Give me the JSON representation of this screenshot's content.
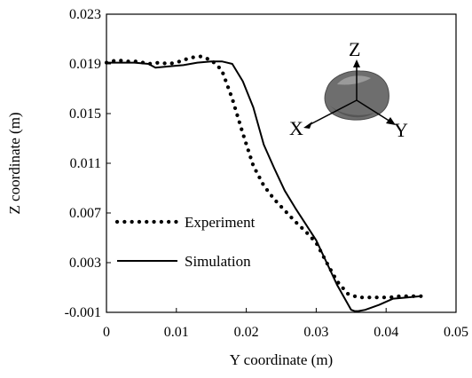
{
  "chart_data": {
    "type": "line",
    "title": "",
    "xlabel": "Y coordinate (m)",
    "ylabel": "Z coordinate (m)",
    "xlim": [
      0,
      0.05
    ],
    "ylim": [
      -0.001,
      0.023
    ],
    "x_ticks": [
      0,
      0.01,
      0.02,
      0.03,
      0.04,
      0.05
    ],
    "x_tick_labels": [
      "0",
      "0.01",
      "0.02",
      "0.03",
      "0.04",
      "0.05"
    ],
    "y_ticks": [
      -0.001,
      0.003,
      0.007,
      0.011,
      0.015,
      0.019,
      0.023
    ],
    "y_tick_labels": [
      "-0.001",
      "0.003",
      "0.007",
      "0.011",
      "0.015",
      "0.019",
      "0.023"
    ],
    "grid": false,
    "legend_position": "lower-left",
    "series": [
      {
        "name": "Experiment",
        "style": "dotted",
        "color": "#000000",
        "x": [
          0.0,
          0.0015,
          0.003,
          0.0045,
          0.006,
          0.0075,
          0.009,
          0.0105,
          0.012,
          0.0135,
          0.015,
          0.0165,
          0.018,
          0.0195,
          0.021,
          0.0225,
          0.024,
          0.0255,
          0.027,
          0.0285,
          0.03,
          0.0315,
          0.033,
          0.0345,
          0.036,
          0.0375,
          0.039,
          0.0405,
          0.042,
          0.0435,
          0.045
        ],
        "y": [
          0.0191,
          0.0193,
          0.0192,
          0.0192,
          0.019,
          0.0191,
          0.019,
          0.0192,
          0.0195,
          0.0196,
          0.0193,
          0.0185,
          0.0162,
          0.0134,
          0.0108,
          0.0092,
          0.0081,
          0.0072,
          0.0063,
          0.0055,
          0.0046,
          0.003,
          0.0015,
          0.0005,
          0.0002,
          0.0002,
          0.0002,
          0.0002,
          0.0003,
          0.0003,
          0.0003
        ]
      },
      {
        "name": "Simulation",
        "style": "solid",
        "color": "#000000",
        "x": [
          0.0,
          0.002,
          0.004,
          0.006,
          0.007,
          0.009,
          0.011,
          0.013,
          0.015,
          0.0165,
          0.018,
          0.0195,
          0.021,
          0.0225,
          0.024,
          0.0255,
          0.027,
          0.0285,
          0.03,
          0.0315,
          0.033,
          0.034,
          0.035,
          0.0355,
          0.036,
          0.037,
          0.039,
          0.041,
          0.043,
          0.045
        ],
        "y": [
          0.0191,
          0.0191,
          0.0191,
          0.019,
          0.0187,
          0.0188,
          0.0189,
          0.0191,
          0.0192,
          0.0192,
          0.019,
          0.0176,
          0.0155,
          0.0125,
          0.0106,
          0.0088,
          0.0074,
          0.0061,
          0.0048,
          0.003,
          0.0012,
          0.0002,
          -0.0008,
          -0.0009,
          -0.0009,
          -0.0008,
          -0.0004,
          0.0001,
          0.0002,
          0.0003
        ]
      }
    ],
    "annotations": {
      "axis_z": "Z",
      "axis_x": "X",
      "axis_y": "Y"
    }
  }
}
